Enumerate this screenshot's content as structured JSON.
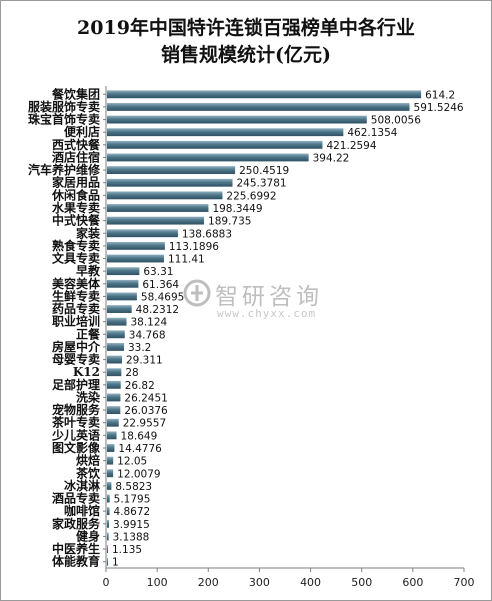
{
  "chart_data": {
    "type": "bar",
    "orientation": "horizontal",
    "title_lines": [
      "2019年中国特许连锁百强榜单中各行业",
      "销售规模统计(亿元)"
    ],
    "categories": [
      "餐饮集团",
      "服装服饰专卖",
      "珠宝首饰专卖",
      "便利店",
      "西式快餐",
      "酒店住宿",
      "汽车养护维修",
      "家居用品",
      "休闲食品",
      "水果专卖",
      "中式快餐",
      "家装",
      "熟食专卖",
      "文具专卖",
      "早教",
      "美容美体",
      "生鲜专卖",
      "药品专卖",
      "职业培训",
      "正餐",
      "房屋中介",
      "母婴专卖",
      "K12",
      "足部护理",
      "洗染",
      "宠物服务",
      "茶叶专卖",
      "少儿英语",
      "图文影像",
      "烘焙",
      "茶饮",
      "冰淇淋",
      "酒品专卖",
      "咖啡馆",
      "家政服务",
      "健身",
      "中医养生",
      "体能教育"
    ],
    "values": [
      614.2,
      591.5246,
      508.0056,
      462.1354,
      421.2594,
      394.22,
      250.4519,
      245.3781,
      225.6992,
      198.3449,
      189.735,
      138.6883,
      113.1896,
      111.41,
      63.31,
      61.364,
      58.4695,
      48.2312,
      38.124,
      34.768,
      33.2,
      29.311,
      28,
      26.82,
      26.2451,
      26.0376,
      22.9557,
      18.649,
      14.4776,
      12.05,
      12.0079,
      8.5823,
      5.1795,
      4.8672,
      3.9915,
      3.1388,
      1.135,
      1
    ],
    "value_labels": [
      "614.2",
      "591.5246",
      "508.0056",
      "462.1354",
      "421.2594",
      "394.22",
      "250.4519",
      "245.3781",
      "225.6992",
      "198.3449",
      "189.735",
      "138.6883",
      "113.1896",
      "111.41",
      "63.31",
      "61.364",
      "58.4695",
      "48.2312",
      "38.124",
      "34.768",
      "33.2",
      "29.311",
      "28",
      "26.82",
      "26.2451",
      "26.0376",
      "22.9557",
      "18.649",
      "14.4776",
      "12.05",
      "12.0079",
      "8.5823",
      "5.1795",
      "4.8672",
      "3.9915",
      "3.1388",
      "1.135",
      "1"
    ],
    "xlim": [
      0,
      700
    ],
    "x_ticks": [
      "0",
      "100",
      "200",
      "300",
      "400",
      "500",
      "600",
      "700"
    ],
    "grid": false,
    "bar_color": "#4d7689"
  },
  "watermark": {
    "name": "智研咨询",
    "url": "www.chyxx.com",
    "color": "#8a8a8a"
  }
}
